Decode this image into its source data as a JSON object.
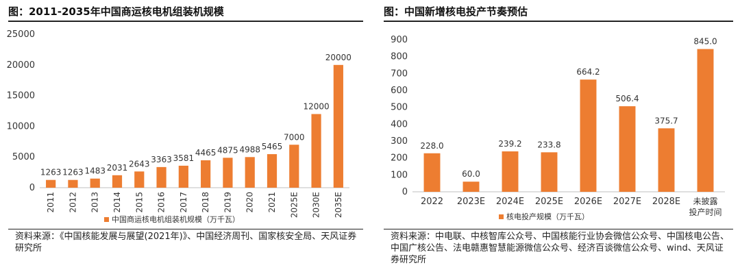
{
  "chart_data": [
    {
      "type": "bar",
      "title": "图：2011-2035年中国商运核电机组装机规模",
      "categories": [
        "2011",
        "2012",
        "2013",
        "2014",
        "2015",
        "2016",
        "2017",
        "2018",
        "2019",
        "2020",
        "2021",
        "2025E",
        "2030E",
        "2035E"
      ],
      "series": [
        {
          "name": "中国商运核电机组装机规模（万千瓦）",
          "values": [
            1263,
            1263,
            1483,
            2031,
            2643,
            3363,
            3581,
            4465,
            4875,
            4988,
            5465,
            7000,
            12000,
            20000
          ],
          "labels": [
            "1263",
            "1263",
            "1483",
            "2031",
            "2643",
            "3363",
            "3581",
            "4465",
            "4875",
            "4988",
            "5465",
            "7000",
            "12000",
            "20000"
          ],
          "color": "#ED7D31"
        }
      ],
      "ylim": [
        0,
        25000
      ],
      "yticks": [
        "0",
        "5000",
        "10000",
        "15000",
        "20000",
        "25000"
      ],
      "xlabel": "",
      "ylabel": "",
      "legend": "bottom",
      "grid": false,
      "x_labels_rotated": true,
      "source": "资料来源：《中国核能发展与展望(2021年)》、中国经济周刊、国家核安全局、天风证券研究所"
    },
    {
      "type": "bar",
      "title": "图：中国新增核电投产节奏预估",
      "categories": [
        "2022",
        "2023E",
        "2024E",
        "2025E",
        "2026E",
        "2027E",
        "2028E",
        "未披露投产时间"
      ],
      "series": [
        {
          "name": "核电投产规模（万千瓦）",
          "values": [
            228.0,
            60.0,
            239.2,
            233.8,
            664.2,
            506.4,
            375.7,
            845.0
          ],
          "labels": [
            "228.0",
            "60.0",
            "239.2",
            "233.8",
            "664.2",
            "506.4",
            "375.7",
            "845.0"
          ],
          "color": "#ED7D31"
        }
      ],
      "ylim": [
        0,
        900
      ],
      "yticks": [
        "0",
        "100",
        "200",
        "300",
        "400",
        "500",
        "600",
        "700",
        "800",
        "900"
      ],
      "xlabel": "",
      "ylabel": "",
      "legend": "bottom",
      "grid": false,
      "source": "资料来源：中电联、中核智库公众号、中国核能行业协会微信公众号、中国核电公告、中国广核公告、法电赣惠智慧能源微信公众号、经济百谈微信公众号、wind、天风证券研究所"
    }
  ]
}
